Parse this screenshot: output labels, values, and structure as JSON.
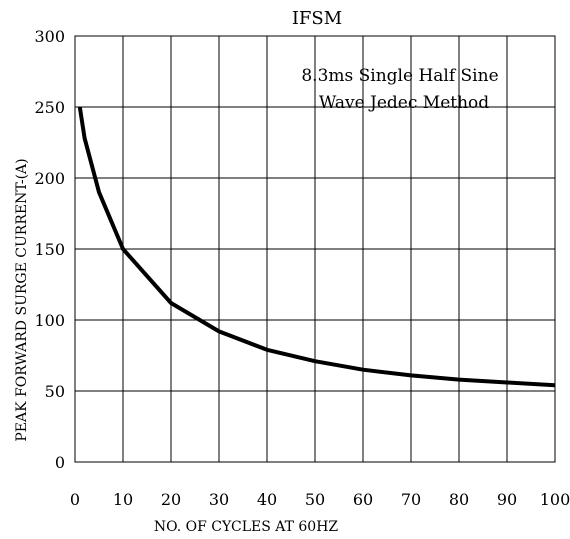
{
  "chart_data": {
    "type": "line",
    "title": "IFSM",
    "xlabel": "NO. OF CYCLES AT 60HZ",
    "ylabel": "PEAK FORWARD SURGE CURRENT-(A)",
    "xlim": [
      0,
      100
    ],
    "ylim": [
      0,
      300
    ],
    "xticks": [
      "0",
      "10",
      "20",
      "30",
      "40",
      "50",
      "60",
      "70",
      "80",
      "90",
      "100"
    ],
    "yticks": [
      "0",
      "50",
      "100",
      "150",
      "200",
      "250",
      "300"
    ],
    "annotation": [
      "8.3ms Single Half Sine",
      "Wave Jedec Method"
    ],
    "grid": true,
    "series": [
      {
        "x": [
          1,
          2,
          5,
          10,
          20,
          30,
          40,
          50,
          60,
          70,
          80,
          90,
          100
        ],
        "y": [
          250,
          228,
          190,
          150,
          112,
          92,
          79,
          71,
          65,
          61,
          58,
          56,
          54
        ]
      }
    ]
  }
}
